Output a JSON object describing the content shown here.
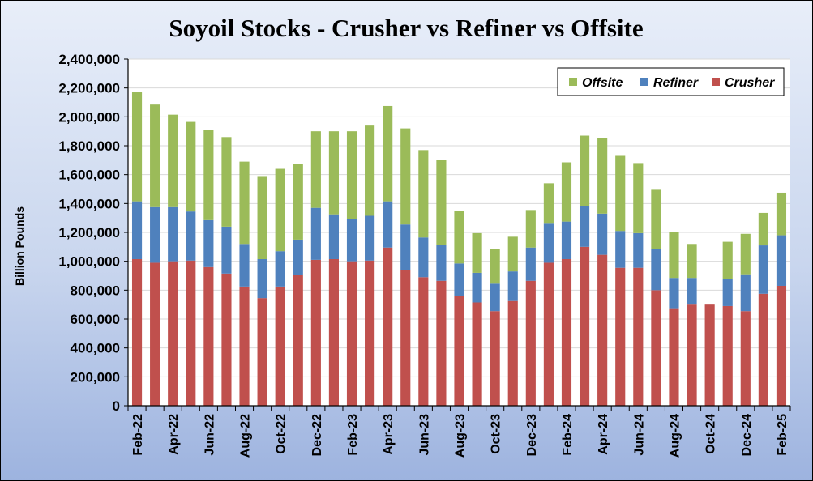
{
  "chart_data": {
    "type": "bar",
    "stacked": true,
    "title": "Soyoil Stocks - Crusher vs Refiner vs Offsite",
    "ylabel": "Billion Pounds",
    "xlabel": "",
    "ylim": [
      0,
      2400000
    ],
    "yticks": [
      0,
      200000,
      400000,
      600000,
      800000,
      1000000,
      1200000,
      1400000,
      1600000,
      1800000,
      2000000,
      2200000,
      2400000
    ],
    "ytick_labels": [
      "0",
      "200,000",
      "400,000",
      "600,000",
      "800,000",
      "1,000,000",
      "1,200,000",
      "1,400,000",
      "1,600,000",
      "1,800,000",
      "2,000,000",
      "2,200,000",
      "2,400,000"
    ],
    "categories": [
      "Feb-22",
      "Mar-22",
      "Apr-22",
      "May-22",
      "Jun-22",
      "Jul-22",
      "Aug-22",
      "Sep-22",
      "Oct-22",
      "Nov-22",
      "Dec-22",
      "Jan-23",
      "Feb-23",
      "Mar-23",
      "Apr-23",
      "May-23",
      "Jun-23",
      "Jul-23",
      "Aug-23",
      "Sep-23",
      "Oct-23",
      "Nov-23",
      "Dec-23",
      "Jan-24",
      "Feb-24",
      "Mar-24",
      "Apr-24",
      "May-24",
      "Jun-24",
      "Jul-24",
      "Aug-24",
      "Sep-24",
      "Oct-24",
      "Nov-24",
      "Dec-24",
      "Jan-25",
      "Feb-25"
    ],
    "x_tick_labels": [
      "Feb-22",
      "",
      "Apr-22",
      "",
      "Jun-22",
      "",
      "Aug-22",
      "",
      "Oct-22",
      "",
      "Dec-22",
      "",
      "Feb-23",
      "",
      "Apr-23",
      "",
      "Jun-23",
      "",
      "Aug-23",
      "",
      "Oct-23",
      "",
      "Dec-23",
      "",
      "Feb-24",
      "",
      "Apr-24",
      "",
      "Jun-24",
      "",
      "Aug-24",
      "",
      "Oct-24",
      "",
      "Dec-24",
      "",
      "Feb-25"
    ],
    "series": [
      {
        "name": "Crusher",
        "color": "#c0504d",
        "values": [
          1015000,
          990000,
          1000000,
          1005000,
          960000,
          915000,
          825000,
          745000,
          825000,
          905000,
          1010000,
          1015000,
          1000000,
          1005000,
          1095000,
          940000,
          890000,
          865000,
          760000,
          715000,
          655000,
          725000,
          865000,
          990000,
          1015000,
          1100000,
          1045000,
          955000,
          955000,
          800000,
          675000,
          700000,
          700000,
          690000,
          655000,
          775000,
          830000
        ]
      },
      {
        "name": "Refiner",
        "color": "#4f81bd",
        "values": [
          400000,
          385000,
          375000,
          340000,
          325000,
          325000,
          295000,
          270000,
          245000,
          245000,
          360000,
          310000,
          290000,
          310000,
          320000,
          315000,
          275000,
          250000,
          225000,
          205000,
          190000,
          205000,
          230000,
          270000,
          260000,
          285000,
          285000,
          255000,
          240000,
          285000,
          210000,
          185000,
          0,
          185000,
          255000,
          335000,
          350000
        ]
      },
      {
        "name": "Offsite",
        "color": "#9bbb59",
        "values": [
          755000,
          710000,
          640000,
          620000,
          625000,
          620000,
          570000,
          575000,
          570000,
          525000,
          530000,
          575000,
          610000,
          630000,
          660000,
          665000,
          605000,
          585000,
          365000,
          275000,
          240000,
          240000,
          260000,
          280000,
          410000,
          485000,
          525000,
          520000,
          485000,
          410000,
          320000,
          235000,
          0,
          260000,
          280000,
          225000,
          295000
        ]
      }
    ],
    "legend": {
      "position": "top-right",
      "entries": [
        "Offsite",
        "Refiner",
        "Crusher"
      ]
    },
    "grid": true
  }
}
